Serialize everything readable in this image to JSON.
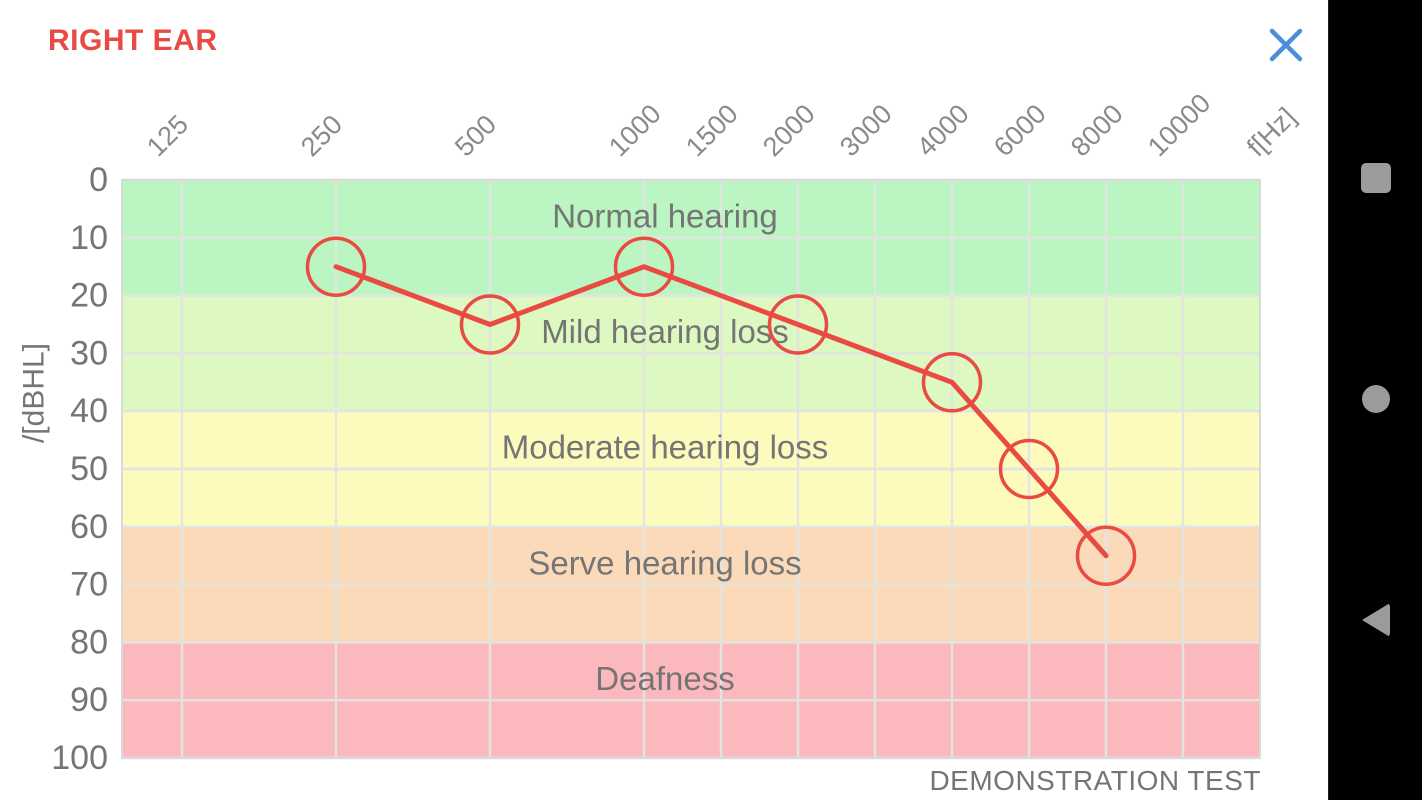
{
  "header": {
    "title": "RIGHT EAR",
    "close_icon": "close-x"
  },
  "chart_data": {
    "type": "line",
    "title": "RIGHT EAR",
    "x_axis_label": "f[Hz]",
    "y_axis_label": "/[dBHL]",
    "x_ticks": [
      125,
      250,
      500,
      1000,
      1500,
      2000,
      3000,
      4000,
      6000,
      8000,
      10000
    ],
    "y_ticks": [
      0,
      10,
      20,
      30,
      40,
      50,
      60,
      70,
      80,
      90,
      100
    ],
    "y_range": [
      0,
      100
    ],
    "grid": true,
    "zones": [
      {
        "label": "Normal hearing",
        "from_db": 0,
        "to_db": 20,
        "color": "#baf5c2"
      },
      {
        "label": "Mild hearing loss",
        "from_db": 20,
        "to_db": 40,
        "color": "#ddf8c0"
      },
      {
        "label": "Moderate hearing loss",
        "from_db": 40,
        "to_db": 60,
        "color": "#fdfabe"
      },
      {
        "label": "Serve hearing loss",
        "from_db": 60,
        "to_db": 80,
        "color": "#fbdaba"
      },
      {
        "label": "Deafness",
        "from_db": 80,
        "to_db": 100,
        "color": "#fcb9bd"
      }
    ],
    "series": [
      {
        "name": "right-ear-threshold",
        "color": "#e94b43",
        "marker": "circle",
        "points": [
          {
            "freq_hz": 250,
            "db": 15
          },
          {
            "freq_hz": 500,
            "db": 25
          },
          {
            "freq_hz": 1000,
            "db": 15
          },
          {
            "freq_hz": 2000,
            "db": 25
          },
          {
            "freq_hz": 4000,
            "db": 35
          },
          {
            "freq_hz": 6000,
            "db": 50
          },
          {
            "freq_hz": 8000,
            "db": 65
          }
        ]
      }
    ],
    "footer_note": "DEMONSTRATION TEST"
  },
  "colors": {
    "title_red": "#e84b45",
    "close_blue": "#4a90d9",
    "zone_text": "#757575",
    "y_tick_text": "#757575",
    "x_tick_text": "#8a8a8a",
    "gridline": "#e1e4e1",
    "plot_border": "#d8dad8",
    "nav_bg": "#000000",
    "nav_icon": "#9b9b9b"
  },
  "nav_bar": {
    "icons": [
      {
        "name": "recents",
        "shape": "square"
      },
      {
        "name": "home",
        "shape": "circle"
      },
      {
        "name": "back",
        "shape": "triangle-left"
      }
    ]
  }
}
